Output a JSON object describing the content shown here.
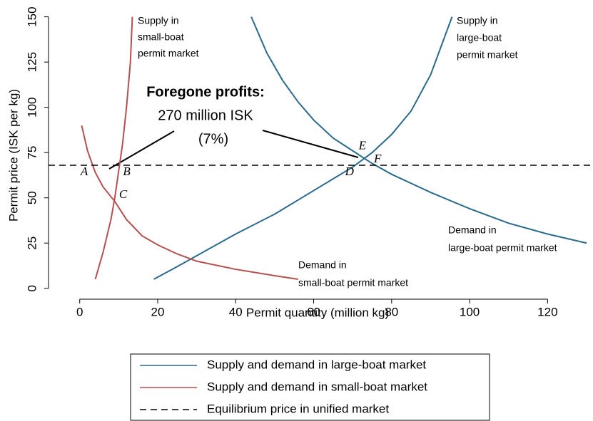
{
  "chart_data": {
    "type": "line",
    "x_label": "Permit quantity (million kg)",
    "y_label": "Permit price (ISK per kg)",
    "xlim": [
      -8,
      130
    ],
    "xticks": [
      0,
      20,
      40,
      60,
      80,
      100,
      120
    ],
    "ylim": [
      -6,
      153
    ],
    "yticks": [
      0,
      25,
      50,
      75,
      100,
      125,
      150
    ],
    "series": [
      {
        "name": "Supply and demand in large-boat market",
        "color": "#2a6a8a",
        "curves": [
          {
            "label": [
              "Supply in",
              "large-boat",
              "permit market"
            ],
            "x": [
              19,
              25,
              30,
              40,
              50,
              60,
              70,
              75,
              80,
              85,
              90,
              95.5
            ],
            "values": [
              5,
              12,
              18,
              30,
              41,
              54,
              67,
              75,
              85,
              98,
              118,
              150
            ]
          },
          {
            "label": [
              "Demand in",
              "large-boat permit market"
            ],
            "x": [
              44,
              48,
              52,
              56,
              60,
              65,
              70,
              75,
              80,
              90,
              100,
              110,
              120,
              130
            ],
            "values": [
              150,
              130,
              115,
              103,
              93,
              83,
              76,
              69,
              63,
              53,
              44,
              36,
              30,
              25
            ]
          }
        ]
      },
      {
        "name": "Supply and demand in small-boat market",
        "color": "#b5504f",
        "curves": [
          {
            "label": [
              "Supply in",
              "small-boat",
              "permit market"
            ],
            "x": [
              4,
              6,
              8,
              9,
              10,
              11,
              12,
              13,
              13.5
            ],
            "values": [
              5,
              20,
              38,
              50,
              65,
              80,
              100,
              125,
              150
            ]
          },
          {
            "label": [
              "Demand in",
              "small-boat permit market"
            ],
            "x": [
              0.5,
              2,
              4,
              6,
              9,
              12,
              16,
              20,
              25,
              30,
              40,
              50,
              56
            ],
            "values": [
              90,
              76,
              64,
              56,
              48,
              38,
              29,
              24,
              19,
              15,
              10.5,
              7,
              5
            ]
          }
        ]
      },
      {
        "name": "Equilibrium price in unified market",
        "color": "#000000",
        "dashed": true,
        "value": 68
      }
    ],
    "points": [
      {
        "label": "A",
        "x": 3.5,
        "y": 68
      },
      {
        "label": "B",
        "x": 10,
        "y": 68
      },
      {
        "label": "C",
        "x": 9,
        "y": 49
      },
      {
        "label": "D",
        "x": 71,
        "y": 68
      },
      {
        "label": "E",
        "x": 73,
        "y": 72
      },
      {
        "label": "F",
        "x": 74,
        "y": 68
      }
    ],
    "annotation": {
      "title": "Foregone profits:",
      "lines": [
        "270 million ISK",
        "(7%)"
      ]
    }
  }
}
